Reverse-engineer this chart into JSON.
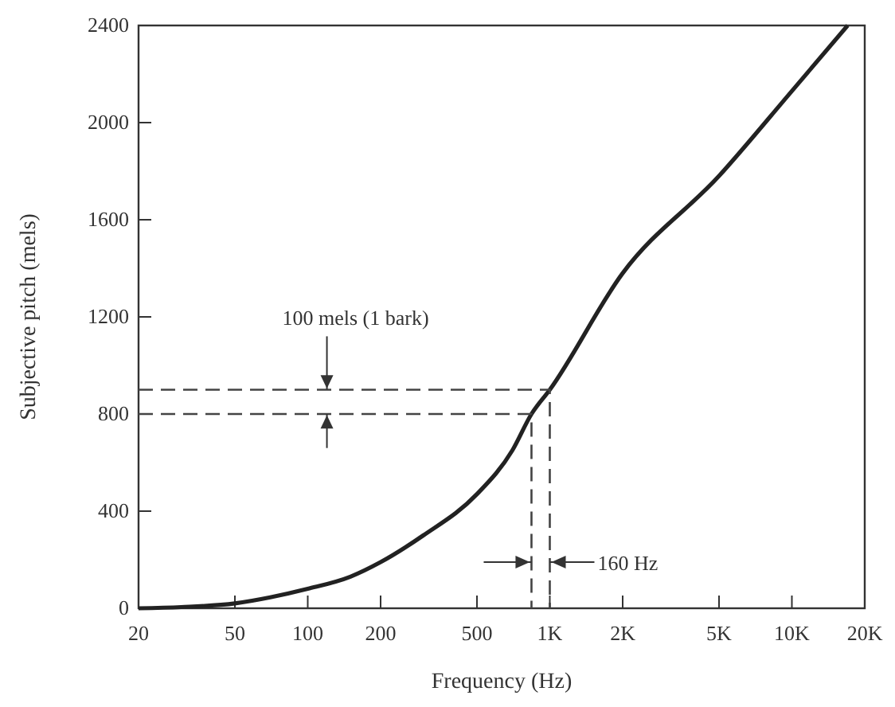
{
  "chart_data": {
    "type": "line",
    "xlabel": "Frequency (Hz)",
    "ylabel": "Subjective pitch (mels)",
    "log": "x",
    "xlim": [
      20,
      20000
    ],
    "ylim": [
      0,
      2400
    ],
    "xticks": [
      20,
      50,
      100,
      200,
      500,
      {
        "value": 1000,
        "label": "1K"
      },
      {
        "value": 2000,
        "label": "2K"
      },
      {
        "value": 5000,
        "label": "5K"
      },
      {
        "value": 10000,
        "label": "10K"
      },
      {
        "value": 20000,
        "label": "20K"
      }
    ],
    "yticks": [
      0,
      400,
      800,
      1200,
      1600,
      2000,
      2400
    ],
    "grid": false,
    "series": [
      {
        "color": "#222222",
        "line_style": "solid",
        "x": [
          20,
          30,
          50,
          70,
          100,
          150,
          200,
          300,
          500,
          700,
          840,
          1000,
          2000,
          5000,
          10000,
          17000
        ],
        "values": [
          0,
          5,
          20,
          45,
          80,
          130,
          190,
          300,
          470,
          650,
          800,
          900,
          1380,
          1780,
          2130,
          2400
        ]
      },
      {
        "color": "#444444",
        "line_style": "dashed",
        "x": [
          20,
          1000,
          1000
        ],
        "values": [
          900,
          900,
          0
        ]
      },
      {
        "color": "#444444",
        "line_style": "dashed",
        "x": [
          20,
          840,
          840
        ],
        "values": [
          800,
          800,
          0
        ]
      }
    ],
    "annotations": [
      {
        "text": "100 mels (1 bark)",
        "x": 120,
        "y": 900
      },
      {
        "text": "160 Hz",
        "x": 1000,
        "y": 190
      }
    ]
  }
}
